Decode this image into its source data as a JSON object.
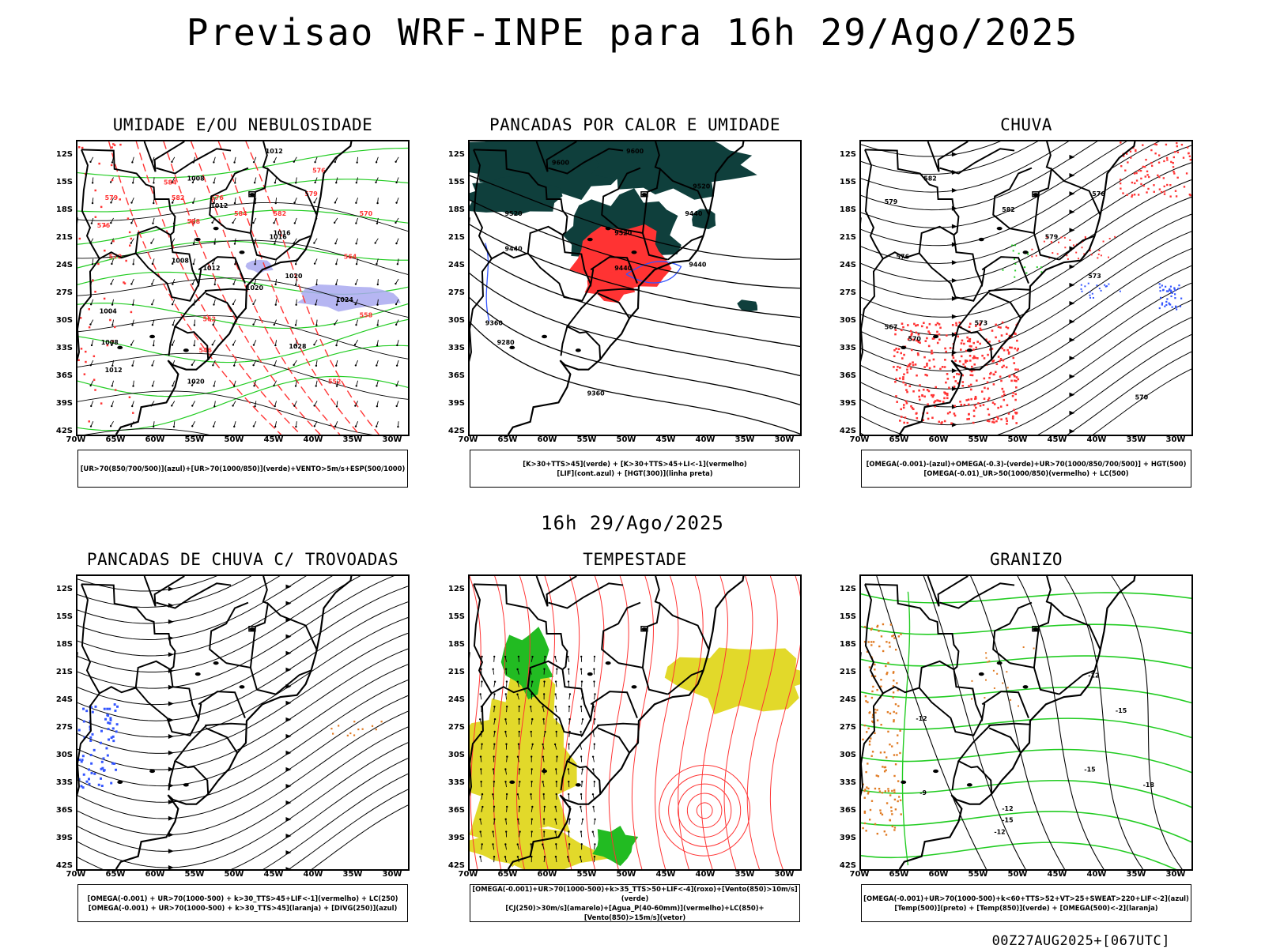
{
  "title": "Previsao WRF-INPE  para 16h 29/Ago/2025",
  "subtitle": "16h 29/Ago/2025",
  "footer": "00Z27AUG2025+[067UTC]",
  "lat_labels": [
    "12S",
    "15S",
    "18S",
    "21S",
    "24S",
    "27S",
    "30S",
    "33S",
    "36S",
    "39S",
    "42S"
  ],
  "lon_labels": [
    "70W",
    "65W",
    "60W",
    "55W",
    "50W",
    "45W",
    "40W",
    "35W",
    "30W"
  ],
  "colors": {
    "green": "#22cc22",
    "red": "#ff3333",
    "blue": "#3355ff",
    "darkteal": "#0f3f3c",
    "yellow": "#e2d92a",
    "orange": "#e07a22",
    "lavender": "#a9a9f0"
  },
  "panels": [
    {
      "id": "umidade",
      "title": "UMIDADE E/OU NEBULOSIDADE",
      "legend": [
        "[UR>70(850/700/500)](azul)+[UR>70(1000/850)](verde)+VENTO>5m/s+ESP(500/1000)"
      ],
      "contour_labels": [
        "1012",
        "1008",
        "1012",
        "1016",
        "1020",
        "1008",
        "1012",
        "1020",
        "1016",
        "1024",
        "1028",
        "1020",
        "1012",
        "1008",
        "1004",
        "576",
        "579",
        "582",
        "584",
        "576",
        "570",
        "564",
        "558",
        "552",
        "546",
        "562",
        "588",
        "582",
        "584",
        "579",
        "576",
        "570"
      ]
    },
    {
      "id": "pancadas-calor",
      "title": "PANCADAS POR CALOR E UMIDADE",
      "legend": [
        "[K>30+TTS>45](verde) + [K>30+TTS>45+LI<-1](vermelho)",
        "[LIF](cont.azul) + [HGT(300)](linha preta)"
      ],
      "contour_labels": [
        "9600",
        "9600",
        "9520",
        "9520",
        "9520",
        "9440",
        "9440",
        "9440",
        "9440",
        "9360",
        "9280",
        "9360"
      ]
    },
    {
      "id": "chuva",
      "title": "CHUVA",
      "legend": [
        "[OMEGA(-0.001)-(azul)+OMEGA(-0.3)-(verde)+UR>70(1000/850/700/500)] + HGT(500)",
        "[OMEGA(-0.01)_UR>50(1000/850)(vermelho) + LC(500)"
      ],
      "contour_labels": [
        "582",
        "582",
        "579",
        "576",
        "579",
        "573",
        "576",
        "570",
        "567",
        "573",
        "570"
      ]
    },
    {
      "id": "trovoadas",
      "title": "PANCADAS DE CHUVA C/ TROVOADAS",
      "legend": [
        "[OMEGA(-0.001) + UR>70(1000-500) + k>30_TTS>45+LIF<-1](vermelho) + LC(250)",
        "[OMEGA(-0.001) + UR>70(1000-500) + k>30_TTS>45](laranja) + [DIVG(250)](azul)"
      ],
      "contour_labels": []
    },
    {
      "id": "tempestade",
      "title": "TEMPESTADE",
      "legend": [
        "[OMEGA(-0.001)+UR>70(1000-500)+k>35_TTS>50+LIF<-4](roxo)+[Vento(850)>10m/s](verde)",
        "[CJ(250)>30m/s](amarelo)+[Agua_P(40-60mm)](vermelho)+LC(850)+[Vento(850)>15m/s](vetor)"
      ],
      "contour_labels": []
    },
    {
      "id": "granizo",
      "title": "GRANIZO",
      "legend": [
        "[OMEGA(-0.001)+UR>70(1000-500)+k<60+TTS>52+VT>25+SWEAT>220+LIF<-2](azul)",
        "[Temp(500)](preto) + [Temp(850)](verde) + [OMEGA(500)<-2](laranja)"
      ],
      "contour_labels": [
        "-12",
        "-15",
        "-12",
        "-9",
        "-12",
        "-15",
        "-12",
        "-15",
        "-18"
      ]
    }
  ]
}
